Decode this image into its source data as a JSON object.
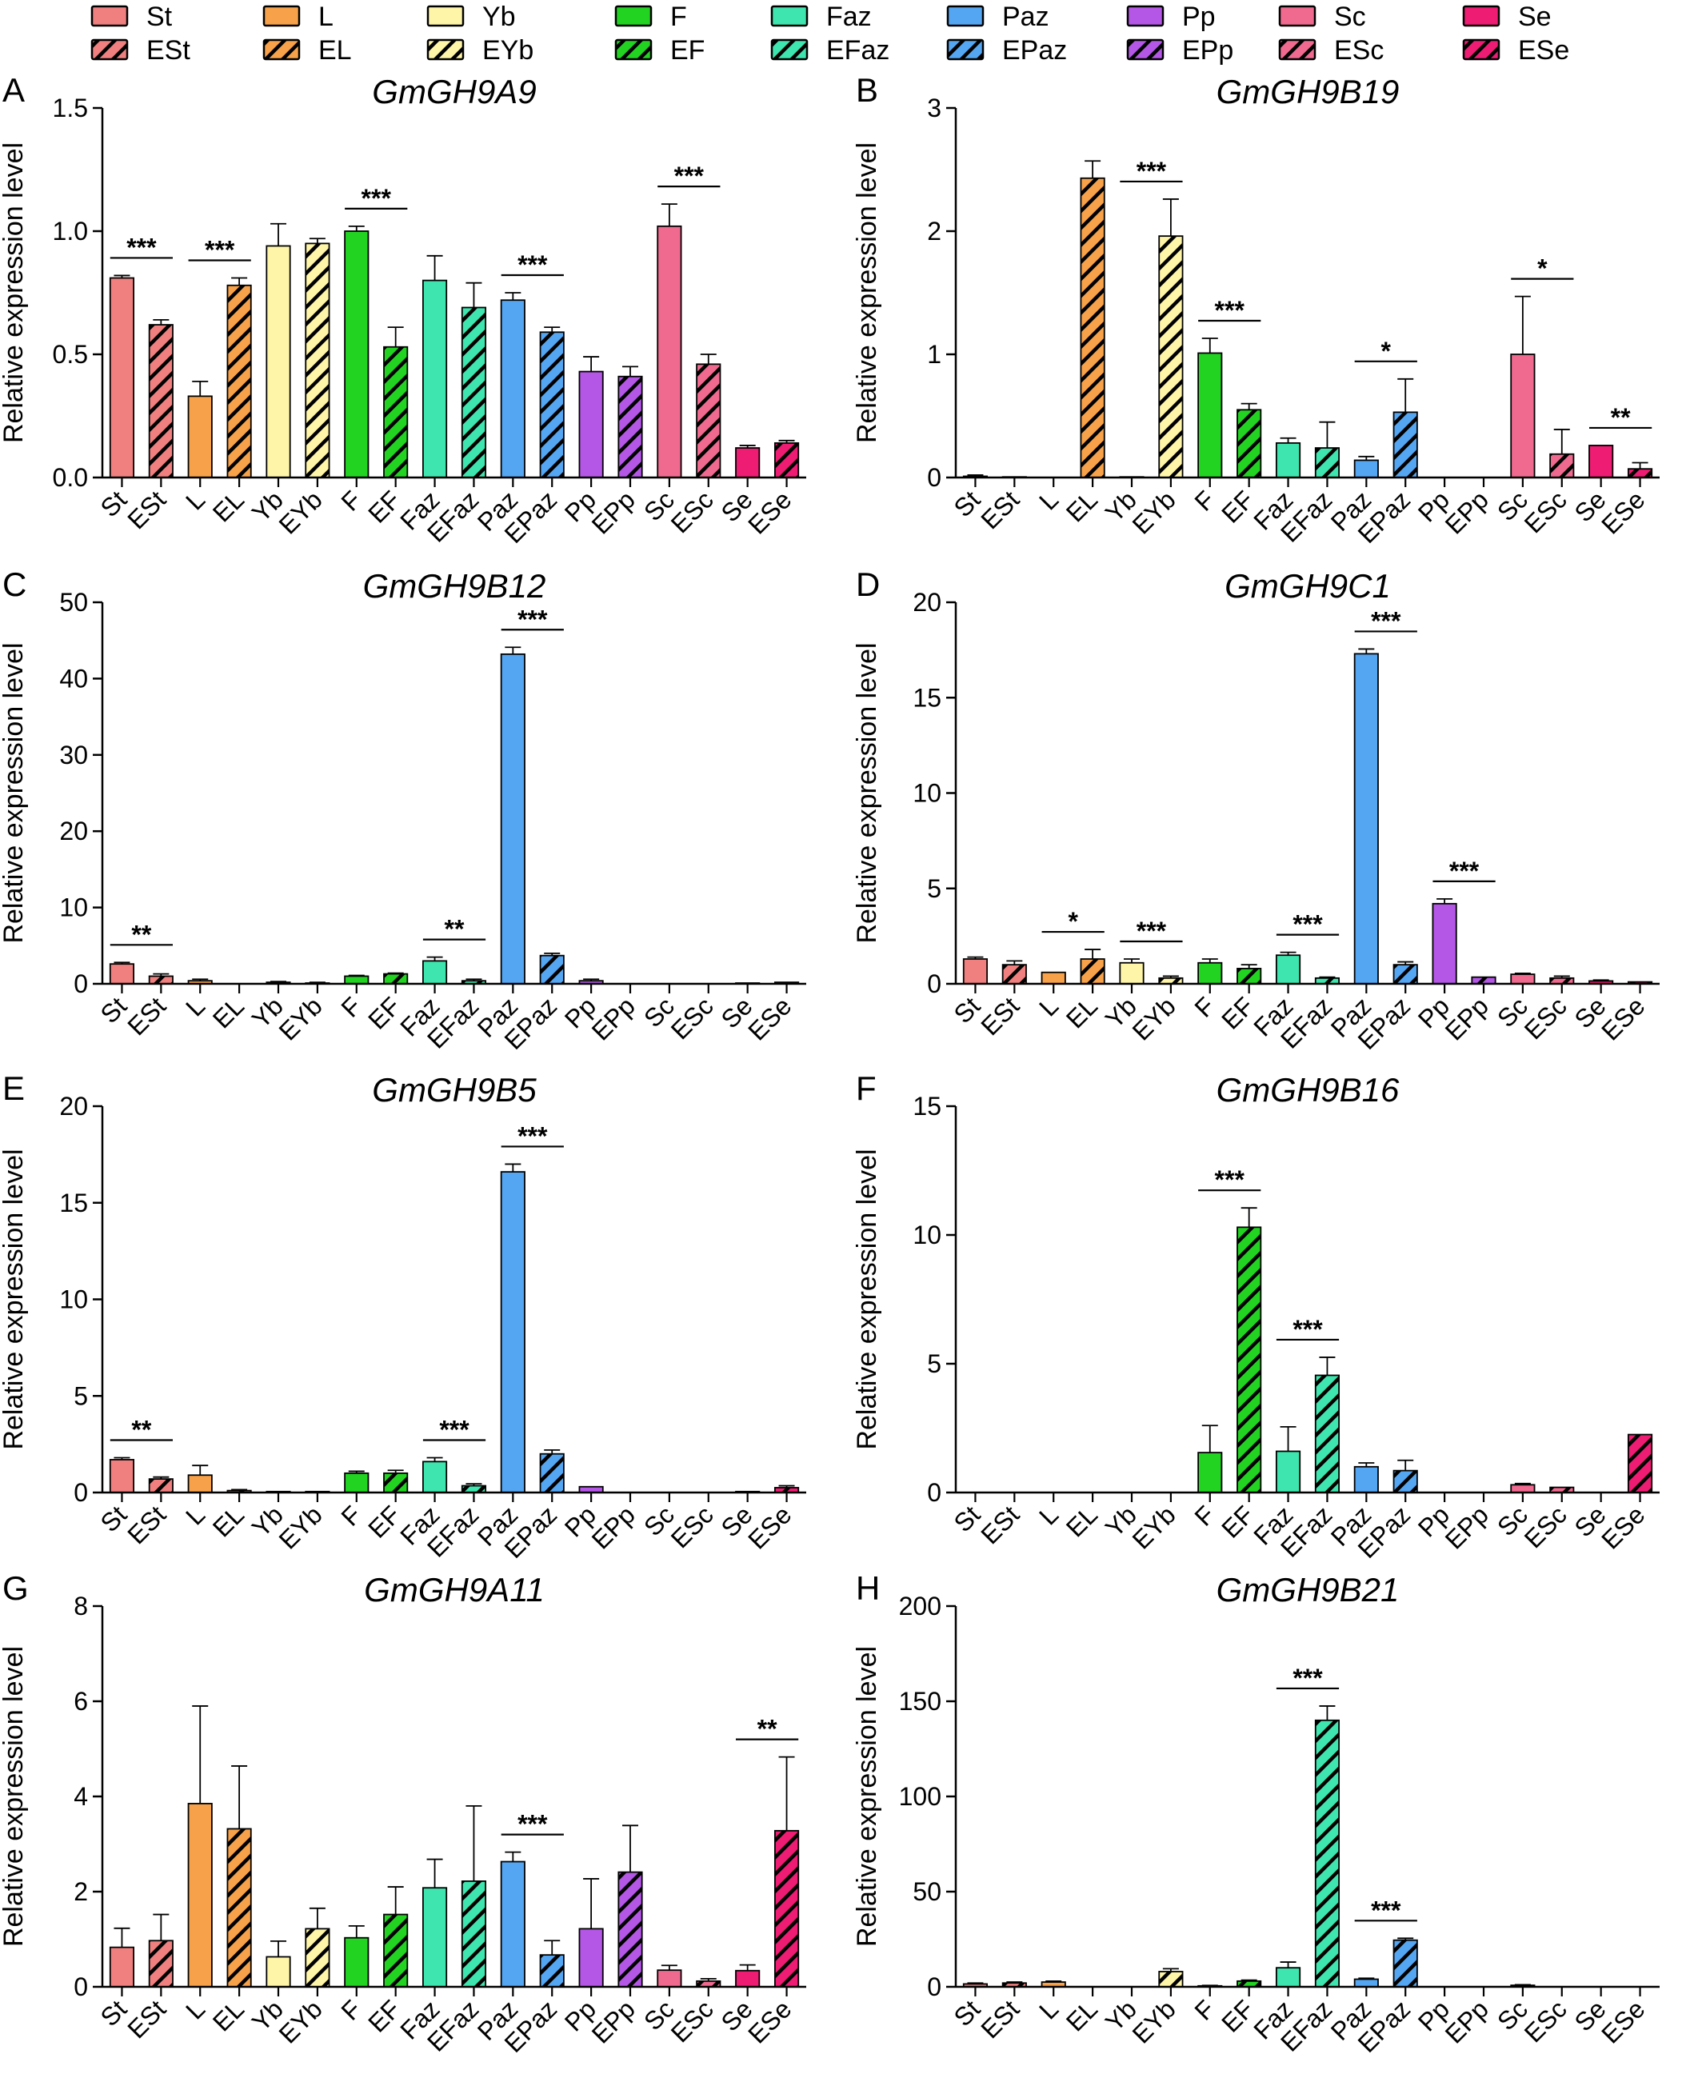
{
  "figure": {
    "x_categories": [
      "St",
      "ESt",
      "L",
      "EL",
      "Yb",
      "EYb",
      "F",
      "EF",
      "Faz",
      "EFaz",
      "Paz",
      "EPaz",
      "Pp",
      "EPp",
      "Sc",
      "ESc",
      "Se",
      "ESe"
    ],
    "ylabel": "Relative expression level"
  },
  "legend": {
    "groups": [
      {
        "plain": "St",
        "hatched": "ESt",
        "color": "#F08080"
      },
      {
        "plain": "L",
        "hatched": "EL",
        "color": "#F7A24A"
      },
      {
        "plain": "Yb",
        "hatched": "EYb",
        "color": "#FFF5A8"
      },
      {
        "plain": "F",
        "hatched": "EF",
        "color": "#22D322"
      },
      {
        "plain": "Faz",
        "hatched": "EFaz",
        "color": "#3FE5AE"
      },
      {
        "plain": "Paz",
        "hatched": "EPaz",
        "color": "#55A6F2"
      },
      {
        "plain": "Pp",
        "hatched": "EPp",
        "color": "#B457E6"
      },
      {
        "plain": "Sc",
        "hatched": "ESc",
        "color": "#F06A90"
      },
      {
        "plain": "Se",
        "hatched": "ESe",
        "color": "#EE1C72"
      }
    ]
  },
  "chart_data": [
    {
      "panel": "A",
      "type": "bar",
      "title": "GmGH9A9",
      "ylabel": "Relative expression level",
      "ylim": [
        0,
        1.5
      ],
      "yticks": [
        "0.0",
        "0.5",
        "1.0",
        "1.5"
      ],
      "ytick_values": [
        0,
        0.5,
        1.0,
        1.5
      ],
      "categories": [
        "St",
        "ESt",
        "L",
        "EL",
        "Yb",
        "EYb",
        "F",
        "EF",
        "Faz",
        "EFaz",
        "Paz",
        "EPaz",
        "Pp",
        "EPp",
        "Sc",
        "ESc",
        "Se",
        "ESe"
      ],
      "values": [
        0.81,
        0.62,
        0.33,
        0.78,
        0.94,
        0.95,
        1.0,
        0.53,
        0.8,
        0.69,
        0.72,
        0.59,
        0.43,
        0.41,
        1.02,
        0.46,
        0.12,
        0.14
      ],
      "errors": [
        0.01,
        0.02,
        0.06,
        0.03,
        0.09,
        0.02,
        0.02,
        0.08,
        0.1,
        0.1,
        0.03,
        0.02,
        0.06,
        0.04,
        0.09,
        0.04,
        0.01,
        0.01
      ],
      "significance": [
        {
          "pair": [
            0,
            1
          ],
          "label": "***"
        },
        {
          "pair": [
            2,
            3
          ],
          "label": "***"
        },
        {
          "pair": [
            6,
            7
          ],
          "label": "***"
        },
        {
          "pair": [
            10,
            11
          ],
          "label": "***"
        },
        {
          "pair": [
            14,
            15
          ],
          "label": "***"
        }
      ]
    },
    {
      "panel": "B",
      "type": "bar",
      "title": "GmGH9B19",
      "ylabel": "Relative expression level",
      "ylim": [
        0,
        3
      ],
      "yticks": [
        "0",
        "1",
        "2",
        "3"
      ],
      "ytick_values": [
        0,
        1,
        2,
        3
      ],
      "categories": [
        "St",
        "ESt",
        "L",
        "EL",
        "Yb",
        "EYb",
        "F",
        "EF",
        "Faz",
        "EFaz",
        "Paz",
        "EPaz",
        "Pp",
        "EPp",
        "Sc",
        "ESc",
        "Se",
        "ESe"
      ],
      "values": [
        0.01,
        0.005,
        0,
        2.43,
        0.005,
        1.96,
        1.01,
        0.55,
        0.28,
        0.24,
        0.14,
        0.53,
        0,
        0,
        1.0,
        0.19,
        0.26,
        0.07
      ],
      "errors": [
        0.01,
        0,
        0,
        0.14,
        0,
        0.3,
        0.12,
        0.05,
        0.04,
        0.21,
        0.03,
        0.27,
        0,
        0,
        0.47,
        0.2,
        0,
        0.05
      ],
      "significance": [
        {
          "pair": [
            4,
            5
          ],
          "label": "***"
        },
        {
          "pair": [
            6,
            7
          ],
          "label": "***"
        },
        {
          "pair": [
            10,
            11
          ],
          "label": "*"
        },
        {
          "pair": [
            14,
            15
          ],
          "label": "*"
        },
        {
          "pair": [
            16,
            17
          ],
          "label": "**"
        }
      ]
    },
    {
      "panel": "C",
      "type": "bar",
      "title": "GmGH9B12",
      "ylabel": "Relative expression level",
      "ylim": [
        0,
        50
      ],
      "yticks": [
        "0",
        "10",
        "20",
        "30",
        "40",
        "50"
      ],
      "ytick_values": [
        0,
        10,
        20,
        30,
        40,
        50
      ],
      "categories": [
        "St",
        "ESt",
        "L",
        "EL",
        "Yb",
        "EYb",
        "F",
        "EF",
        "Faz",
        "EFaz",
        "Paz",
        "EPaz",
        "Pp",
        "EPp",
        "Sc",
        "ESc",
        "Se",
        "ESe"
      ],
      "values": [
        2.6,
        1.0,
        0.4,
        0,
        0.2,
        0.1,
        1.0,
        1.3,
        3.0,
        0.4,
        43.2,
        3.7,
        0.4,
        0,
        0,
        0,
        0.1,
        0.2
      ],
      "errors": [
        0.2,
        0.3,
        0.2,
        0,
        0.1,
        0.1,
        0.1,
        0.1,
        0.5,
        0.2,
        0.9,
        0.3,
        0.2,
        0,
        0,
        0,
        0,
        0
      ],
      "significance": [
        {
          "pair": [
            0,
            1
          ],
          "label": "**"
        },
        {
          "pair": [
            8,
            9
          ],
          "label": "**"
        },
        {
          "pair": [
            10,
            11
          ],
          "label": "***"
        }
      ]
    },
    {
      "panel": "D",
      "type": "bar",
      "title": "GmGH9C1",
      "ylabel": "Relative expression level",
      "ylim": [
        0,
        20
      ],
      "yticks": [
        "0",
        "5",
        "10",
        "15",
        "20"
      ],
      "ytick_values": [
        0,
        5,
        10,
        15,
        20
      ],
      "categories": [
        "St",
        "ESt",
        "L",
        "EL",
        "Yb",
        "EYb",
        "F",
        "EF",
        "Faz",
        "EFaz",
        "Paz",
        "EPaz",
        "Pp",
        "EPp",
        "Sc",
        "ESc",
        "Se",
        "ESe"
      ],
      "values": [
        1.3,
        1.0,
        0.6,
        1.3,
        1.1,
        0.3,
        1.1,
        0.8,
        1.5,
        0.3,
        17.3,
        1.0,
        4.2,
        0.35,
        0.5,
        0.3,
        0.15,
        0.1
      ],
      "errors": [
        0.1,
        0.2,
        0,
        0.5,
        0.2,
        0.1,
        0.2,
        0.2,
        0.15,
        0.05,
        0.25,
        0.15,
        0.25,
        0,
        0.05,
        0.1,
        0.05,
        0
      ],
      "significance": [
        {
          "pair": [
            2,
            3
          ],
          "label": "*"
        },
        {
          "pair": [
            4,
            5
          ],
          "label": "***"
        },
        {
          "pair": [
            8,
            9
          ],
          "label": "***"
        },
        {
          "pair": [
            10,
            11
          ],
          "label": "***"
        },
        {
          "pair": [
            12,
            13
          ],
          "label": "***"
        }
      ]
    },
    {
      "panel": "E",
      "type": "bar",
      "title": "GmGH9B5",
      "ylabel": "Relative expression level",
      "ylim": [
        0,
        20
      ],
      "yticks": [
        "0",
        "5",
        "10",
        "15",
        "20"
      ],
      "ytick_values": [
        0,
        5,
        10,
        15,
        20
      ],
      "categories": [
        "St",
        "ESt",
        "L",
        "EL",
        "Yb",
        "EYb",
        "F",
        "EF",
        "Faz",
        "EFaz",
        "Paz",
        "EPaz",
        "Pp",
        "EPp",
        "Sc",
        "ESc",
        "Se",
        "ESe"
      ],
      "values": [
        1.7,
        0.7,
        0.9,
        0.1,
        0.05,
        0.05,
        1.0,
        1.0,
        1.6,
        0.35,
        16.6,
        2.0,
        0.3,
        0,
        0,
        0,
        0.05,
        0.25
      ],
      "errors": [
        0.1,
        0.1,
        0.5,
        0.05,
        0,
        0,
        0.1,
        0.15,
        0.2,
        0.1,
        0.4,
        0.2,
        0,
        0,
        0,
        0,
        0,
        0.1
      ],
      "significance": [
        {
          "pair": [
            0,
            1
          ],
          "label": "**"
        },
        {
          "pair": [
            8,
            9
          ],
          "label": "***"
        },
        {
          "pair": [
            10,
            11
          ],
          "label": "***"
        }
      ]
    },
    {
      "panel": "F",
      "type": "bar",
      "title": "GmGH9B16",
      "ylabel": "Relative expression level",
      "ylim": [
        0,
        15
      ],
      "yticks": [
        "0",
        "5",
        "10",
        "15"
      ],
      "ytick_values": [
        0,
        5,
        10,
        15
      ],
      "categories": [
        "St",
        "ESt",
        "L",
        "EL",
        "Yb",
        "EYb",
        "F",
        "EF",
        "Faz",
        "EFaz",
        "Paz",
        "EPaz",
        "Pp",
        "EPp",
        "Sc",
        "ESc",
        "Se",
        "ESe"
      ],
      "values": [
        0,
        0,
        0,
        0,
        0,
        0,
        1.55,
        10.3,
        1.6,
        4.55,
        1.0,
        0.85,
        0,
        0,
        0.3,
        0.2,
        0,
        2.25
      ],
      "errors": [
        0,
        0,
        0,
        0,
        0,
        0,
        1.05,
        0.75,
        0.95,
        0.7,
        0.15,
        0.4,
        0,
        0,
        0.05,
        0,
        0,
        0
      ],
      "significance": [
        {
          "pair": [
            6,
            7
          ],
          "label": "***"
        },
        {
          "pair": [
            8,
            9
          ],
          "label": "***"
        }
      ]
    },
    {
      "panel": "G",
      "type": "bar",
      "title": "GmGH9A11",
      "ylabel": "Relative expression level",
      "ylim": [
        0,
        8
      ],
      "yticks": [
        "0",
        "2",
        "4",
        "6",
        "8"
      ],
      "ytick_values": [
        0,
        2,
        4,
        6,
        8
      ],
      "categories": [
        "St",
        "ESt",
        "L",
        "EL",
        "Yb",
        "EYb",
        "F",
        "EF",
        "Faz",
        "EFaz",
        "Paz",
        "EPaz",
        "Pp",
        "EPp",
        "Sc",
        "ESc",
        "Se",
        "ESe"
      ],
      "values": [
        0.83,
        0.97,
        3.85,
        3.32,
        0.63,
        1.22,
        1.03,
        1.52,
        2.08,
        2.22,
        2.63,
        0.67,
        1.22,
        2.41,
        0.35,
        0.12,
        0.34,
        3.28
      ],
      "errors": [
        0.4,
        0.55,
        2.05,
        1.32,
        0.33,
        0.43,
        0.25,
        0.58,
        0.6,
        1.58,
        0.2,
        0.3,
        1.05,
        0.98,
        0.1,
        0.05,
        0.12,
        1.55
      ],
      "significance": [
        {
          "pair": [
            10,
            11
          ],
          "label": "***"
        },
        {
          "pair": [
            16,
            17
          ],
          "label": "**"
        }
      ]
    },
    {
      "panel": "H",
      "type": "bar",
      "title": "GmGH9B21",
      "ylabel": "Relative expression level",
      "ylim": [
        0,
        200
      ],
      "yticks": [
        "0",
        "50",
        "100",
        "150",
        "200"
      ],
      "ytick_values": [
        0,
        50,
        100,
        150,
        200
      ],
      "categories": [
        "St",
        "ESt",
        "L",
        "EL",
        "Yb",
        "EYb",
        "F",
        "EF",
        "Faz",
        "EFaz",
        "Paz",
        "EPaz",
        "Pp",
        "EPp",
        "Sc",
        "ESc",
        "Se",
        "ESe"
      ],
      "values": [
        1.5,
        2.0,
        2.5,
        0,
        0,
        8.0,
        0.5,
        3.0,
        10.0,
        140.0,
        4.0,
        24.5,
        0,
        0,
        0.8,
        0,
        0,
        0
      ],
      "errors": [
        0.5,
        0.5,
        0.5,
        0,
        0,
        1.5,
        0.2,
        0.5,
        3.0,
        7.5,
        0.5,
        1.0,
        0,
        0,
        0.3,
        0,
        0,
        0
      ],
      "significance": [
        {
          "pair": [
            8,
            9
          ],
          "label": "***"
        },
        {
          "pair": [
            10,
            11
          ],
          "label": "***"
        }
      ]
    }
  ]
}
